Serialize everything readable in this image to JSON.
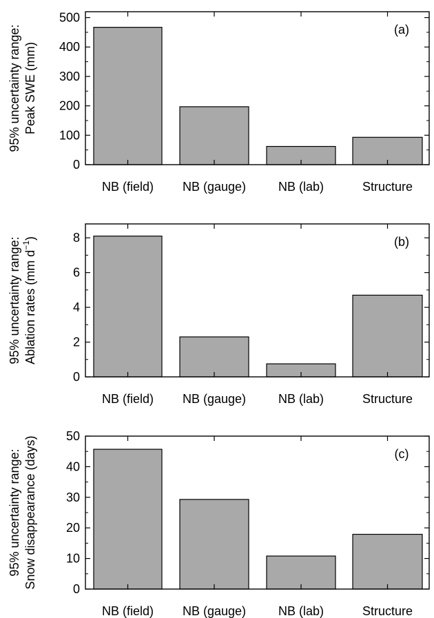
{
  "colors": {
    "bar_fill": "#a9a9a9",
    "bar_stroke": "#000000",
    "axis": "#000000"
  },
  "chart_data": [
    {
      "type": "bar",
      "panel_label": "(a)",
      "ylabel_lines": [
        "95% uncertainty range:",
        "Peak SWE (mm)"
      ],
      "categories": [
        "NB (field)",
        "NB (gauge)",
        "NB (lab)",
        "Structure"
      ],
      "values": [
        467,
        197,
        62,
        93
      ],
      "ylim": [
        0,
        520
      ],
      "yticks": [
        0,
        100,
        200,
        300,
        400,
        500
      ],
      "grid": false,
      "legend": "none"
    },
    {
      "type": "bar",
      "panel_label": "(b)",
      "ylabel_lines": [
        "95% uncertainty range:",
        "Ablation rates (mm d",
        "−1",
        ")"
      ],
      "categories": [
        "NB (field)",
        "NB (gauge)",
        "NB (lab)",
        "Structure"
      ],
      "values": [
        8.1,
        2.3,
        0.75,
        4.7
      ],
      "ylim": [
        0,
        8.8
      ],
      "yticks": [
        0,
        2,
        4,
        6,
        8
      ],
      "grid": false,
      "legend": "none"
    },
    {
      "type": "bar",
      "panel_label": "(c)",
      "ylabel_lines": [
        "95% uncertainty range:",
        "Snow disappearance (days)"
      ],
      "categories": [
        "NB (field)",
        "NB (gauge)",
        "NB (lab)",
        "Structure"
      ],
      "values": [
        45.7,
        29.3,
        10.8,
        17.9
      ],
      "ylim": [
        0,
        50
      ],
      "yticks": [
        0,
        10,
        20,
        30,
        40,
        50
      ],
      "grid": false,
      "legend": "none"
    }
  ]
}
